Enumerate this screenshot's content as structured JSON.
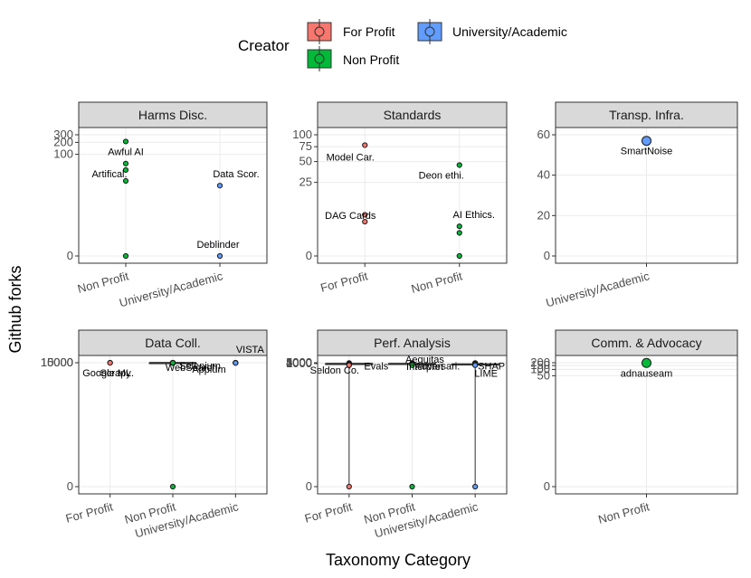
{
  "chart_data": {
    "type": "scatter",
    "xlabel": "Taxonomy Category",
    "ylabel": "Github forks",
    "legend": {
      "title": "Creator",
      "position": "top",
      "entries": [
        {
          "label": "For Profit",
          "color": "#F8766D"
        },
        {
          "label": "University/Academic",
          "color": "#619CFF"
        },
        {
          "label": "Non Profit",
          "color": "#00BA38"
        }
      ]
    },
    "facets": [
      {
        "title": "Harms Disc.",
        "categories": [
          "Non Profit",
          "University/Academic"
        ],
        "yticks": [
          {
            "label": "300",
            "value": 300
          },
          {
            "label": "200",
            "value": 200
          },
          {
            "label": "100",
            "value": 100
          },
          {
            "label": "0",
            "value": 0
          }
        ],
        "points": [
          {
            "category": "Non Profit",
            "value": 210,
            "creator": "Non Profit"
          },
          {
            "category": "Non Profit",
            "value": 55,
            "creator": "Non Profit"
          },
          {
            "category": "Non Profit",
            "value": 35,
            "creator": "Non Profit"
          },
          {
            "category": "Non Profit",
            "value": 15,
            "creator": "Non Profit"
          },
          {
            "category": "Non Profit",
            "value": 0,
            "creator": "Non Profit"
          },
          {
            "category": "University/Academic",
            "value": 10,
            "creator": "University/Academic"
          },
          {
            "category": "University/Academic",
            "value": 0,
            "creator": "University/Academic"
          }
        ],
        "labels": [
          {
            "text": "Awful AI",
            "category": "Non Profit",
            "value": 210
          },
          {
            "text": "Artifical.",
            "category": "Non Profit",
            "value": 55
          },
          {
            "text": "Data Scor.",
            "category": "University/Academic",
            "value": 10
          },
          {
            "text": "Deblinder",
            "category": "University/Academic",
            "value": 0
          }
        ]
      },
      {
        "title": "Standards",
        "categories": [
          "For Profit",
          "Non Profit"
        ],
        "yticks": [
          {
            "label": "100",
            "value": 100
          },
          {
            "label": "75",
            "value": 75
          },
          {
            "label": "50",
            "value": 50
          },
          {
            "label": "25",
            "value": 25
          },
          {
            "label": "0",
            "value": 0
          }
        ],
        "points": [
          {
            "category": "For Profit",
            "value": 78,
            "creator": "For Profit"
          },
          {
            "category": "For Profit",
            "value": 5,
            "creator": "For Profit"
          },
          {
            "category": "For Profit",
            "value": 3,
            "creator": "For Profit"
          },
          {
            "category": "Non Profit",
            "value": 45,
            "creator": "Non Profit"
          },
          {
            "category": "Non Profit",
            "value": 2,
            "creator": "Non Profit"
          },
          {
            "category": "Non Profit",
            "value": 1,
            "creator": "Non Profit"
          },
          {
            "category": "Non Profit",
            "value": 0,
            "creator": "Non Profit"
          }
        ],
        "labels": [
          {
            "text": "Model Car.",
            "category": "For Profit",
            "value": 78
          },
          {
            "text": "Deon ethi.",
            "category": "Non Profit",
            "value": 45
          },
          {
            "text": "DAG Cards",
            "category": "For Profit",
            "value": 3
          },
          {
            "text": "AI Ethics.",
            "category": "Non Profit",
            "value": 2
          }
        ]
      },
      {
        "title": "Transp. Infra.",
        "categories": [
          "University/Academic"
        ],
        "yticks": [
          {
            "label": "60",
            "value": 60
          },
          {
            "label": "40",
            "value": 40
          },
          {
            "label": "20",
            "value": 20
          },
          {
            "label": "0",
            "value": 0
          }
        ],
        "points": [
          {
            "category": "University/Academic",
            "value": 57,
            "creator": "University/Academic"
          }
        ],
        "labels": [
          {
            "text": "SmartNoise",
            "category": "University/Academic",
            "value": 57
          }
        ]
      },
      {
        "title": "Data Coll.",
        "categories": [
          "For Profit",
          "Non Profit",
          "University/Academic"
        ],
        "yticks": [
          {
            "label": "15000",
            "value": 15000
          },
          {
            "label": "10000",
            "value": 10000
          },
          {
            "label": "5000",
            "value": 5000
          },
          {
            "label": "0",
            "value": 0
          }
        ],
        "boxes": [
          {
            "category": "Non Profit",
            "creator": "Non Profit",
            "lower": 50,
            "q1": 80,
            "median": 200,
            "q3": 600,
            "upper": 1000
          }
        ],
        "points": [
          {
            "category": "For Profit",
            "value": 9000,
            "creator": "For Profit"
          },
          {
            "category": "For Profit",
            "value": 450,
            "creator": "For Profit"
          },
          {
            "category": "Non Profit",
            "value": 5000,
            "creator": "Non Profit"
          },
          {
            "category": "Non Profit",
            "value": 4900,
            "creator": "Non Profit"
          },
          {
            "category": "Non Profit",
            "value": 2700,
            "creator": "Non Profit"
          },
          {
            "category": "Non Profit",
            "value": 900,
            "creator": "Non Profit"
          },
          {
            "category": "Non Profit",
            "value": 600,
            "creator": "Non Profit"
          },
          {
            "category": "Non Profit",
            "value": 500,
            "creator": "Non Profit"
          },
          {
            "category": "Non Profit",
            "value": 400,
            "creator": "Non Profit"
          },
          {
            "category": "Non Profit",
            "value": 300,
            "creator": "Non Profit"
          },
          {
            "category": "Non Profit",
            "value": 250,
            "creator": "Non Profit"
          },
          {
            "category": "Non Profit",
            "value": 200,
            "creator": "Non Profit"
          },
          {
            "category": "Non Profit",
            "value": 150,
            "creator": "Non Profit"
          },
          {
            "category": "Non Profit",
            "value": 100,
            "creator": "Non Profit"
          },
          {
            "category": "Non Profit",
            "value": 80,
            "creator": "Non Profit"
          },
          {
            "category": "Non Profit",
            "value": 60,
            "creator": "Non Profit"
          },
          {
            "category": "Non Profit",
            "value": 40,
            "creator": "Non Profit"
          },
          {
            "category": "Non Profit",
            "value": 20,
            "creator": "Non Profit"
          },
          {
            "category": "Non Profit",
            "value": 10,
            "creator": "Non Profit"
          },
          {
            "category": "Non Profit",
            "value": 0,
            "creator": "Non Profit"
          },
          {
            "category": "University/Academic",
            "value": 450,
            "creator": "University/Academic"
          },
          {
            "category": "University/Academic",
            "value": 200,
            "creator": "University/Academic"
          },
          {
            "category": "University/Academic",
            "value": 100,
            "creator": "University/Academic"
          },
          {
            "category": "University/Academic",
            "value": 30,
            "creator": "University/Academic"
          },
          {
            "category": "University/Academic",
            "value": 2,
            "creator": "University/Academic"
          }
        ],
        "labels": [
          {
            "text": "Scrapy",
            "category": "For Profit",
            "value": 9000
          },
          {
            "text": "Selenium",
            "category": "Non Profit",
            "value": 5000
          },
          {
            "text": "Appium",
            "category": "Non Profit",
            "value": 4900
          },
          {
            "text": "VISTA",
            "category": "University/Academic",
            "value": 450
          },
          {
            "text": "Google ML.",
            "category": "For Profit",
            "value": 450
          },
          {
            "text": "WebSearch.",
            "category": "Non Profit",
            "value": 150
          }
        ]
      },
      {
        "title": "Perf. Analysis",
        "categories": [
          "For Profit",
          "Non Profit",
          "University/Academic"
        ],
        "yticks": [
          {
            "label": "5000",
            "value": 5000
          },
          {
            "label": "4000",
            "value": 4000
          },
          {
            "label": "3000",
            "value": 3000
          },
          {
            "label": "2000",
            "value": 2000
          },
          {
            "label": "1000",
            "value": 1000
          },
          {
            "label": "0",
            "value": 0
          }
        ],
        "boxes": [
          {
            "category": "For Profit",
            "creator": "For Profit",
            "lower": 0,
            "q1": 300,
            "median": 570,
            "q3": 700,
            "upper": 900
          },
          {
            "category": "Non Profit",
            "creator": "Non Profit",
            "lower": 500,
            "q1": 560,
            "median": 640,
            "q3": 760,
            "upper": 1000
          },
          {
            "category": "University/Academic",
            "creator": "University/Academic",
            "lower": 0,
            "q1": 180,
            "median": 220,
            "q3": 300,
            "upper": 700
          }
        ],
        "points": [
          {
            "category": "For Profit",
            "value": 2500,
            "creator": "For Profit"
          },
          {
            "category": "For Profit",
            "value": 780,
            "creator": "For Profit"
          },
          {
            "category": "For Profit",
            "value": 720,
            "creator": "For Profit"
          },
          {
            "category": "For Profit",
            "value": 680,
            "creator": "For Profit"
          },
          {
            "category": "For Profit",
            "value": 620,
            "creator": "For Profit"
          },
          {
            "category": "For Profit",
            "value": 590,
            "creator": "For Profit"
          },
          {
            "category": "For Profit",
            "value": 560,
            "creator": "For Profit"
          },
          {
            "category": "For Profit",
            "value": 530,
            "creator": "For Profit"
          },
          {
            "category": "For Profit",
            "value": 500,
            "creator": "For Profit"
          },
          {
            "category": "For Profit",
            "value": 450,
            "creator": "For Profit"
          },
          {
            "category": "For Profit",
            "value": 400,
            "creator": "For Profit"
          },
          {
            "category": "For Profit",
            "value": 350,
            "creator": "For Profit"
          },
          {
            "category": "For Profit",
            "value": 300,
            "creator": "For Profit"
          },
          {
            "category": "For Profit",
            "value": 250,
            "creator": "For Profit"
          },
          {
            "category": "For Profit",
            "value": 200,
            "creator": "For Profit"
          },
          {
            "category": "For Profit",
            "value": 150,
            "creator": "For Profit"
          },
          {
            "category": "For Profit",
            "value": 100,
            "creator": "For Profit"
          },
          {
            "category": "For Profit",
            "value": 60,
            "creator": "For Profit"
          },
          {
            "category": "For Profit",
            "value": 30,
            "creator": "For Profit"
          },
          {
            "category": "For Profit",
            "value": 0,
            "creator": "For Profit"
          },
          {
            "category": "Non Profit",
            "value": 2500,
            "creator": "Non Profit"
          },
          {
            "category": "Non Profit",
            "value": 900,
            "creator": "Non Profit"
          },
          {
            "category": "Non Profit",
            "value": 800,
            "creator": "Non Profit"
          },
          {
            "category": "Non Profit",
            "value": 750,
            "creator": "Non Profit"
          },
          {
            "category": "Non Profit",
            "value": 700,
            "creator": "Non Profit"
          },
          {
            "category": "Non Profit",
            "value": 650,
            "creator": "Non Profit"
          },
          {
            "category": "Non Profit",
            "value": 600,
            "creator": "Non Profit"
          },
          {
            "category": "Non Profit",
            "value": 550,
            "creator": "Non Profit"
          },
          {
            "category": "Non Profit",
            "value": 500,
            "creator": "Non Profit"
          },
          {
            "category": "Non Profit",
            "value": 200,
            "creator": "Non Profit"
          },
          {
            "category": "Non Profit",
            "value": 30,
            "creator": "Non Profit"
          },
          {
            "category": "Non Profit",
            "value": 0,
            "creator": "Non Profit"
          },
          {
            "category": "University/Academic",
            "value": 2500,
            "creator": "University/Academic"
          },
          {
            "category": "University/Academic",
            "value": 2000,
            "creator": "University/Academic"
          },
          {
            "category": "University/Academic",
            "value": 700,
            "creator": "University/Academic"
          },
          {
            "category": "University/Academic",
            "value": 550,
            "creator": "University/Academic"
          },
          {
            "category": "University/Academic",
            "value": 450,
            "creator": "University/Academic"
          },
          {
            "category": "University/Academic",
            "value": 380,
            "creator": "University/Academic"
          },
          {
            "category": "University/Academic",
            "value": 330,
            "creator": "University/Academic"
          },
          {
            "category": "University/Academic",
            "value": 290,
            "creator": "University/Academic"
          },
          {
            "category": "University/Academic",
            "value": 260,
            "creator": "University/Academic"
          },
          {
            "category": "University/Academic",
            "value": 230,
            "creator": "University/Academic"
          },
          {
            "category": "University/Academic",
            "value": 210,
            "creator": "University/Academic"
          },
          {
            "category": "University/Academic",
            "value": 190,
            "creator": "University/Academic"
          },
          {
            "category": "University/Academic",
            "value": 160,
            "creator": "University/Academic"
          },
          {
            "category": "University/Academic",
            "value": 130,
            "creator": "University/Academic"
          },
          {
            "category": "University/Academic",
            "value": 100,
            "creator": "University/Academic"
          },
          {
            "category": "University/Academic",
            "value": 60,
            "creator": "University/Academic"
          },
          {
            "category": "University/Academic",
            "value": 30,
            "creator": "University/Academic"
          },
          {
            "category": "University/Academic",
            "value": 0,
            "creator": "University/Academic"
          }
        ],
        "labels": [
          {
            "text": "Evals",
            "category": "For Profit",
            "value": 2500
          },
          {
            "text": "Adversari.",
            "category": "Non Profit",
            "value": 2500
          },
          {
            "text": "SHAP",
            "category": "University/Academic",
            "value": 2500
          },
          {
            "text": "LIME",
            "category": "University/Academic",
            "value": 2000
          },
          {
            "text": "Seldon Co.",
            "category": "For Profit",
            "value": 780
          },
          {
            "text": "Aequitas",
            "category": "Non Profit",
            "value": 750
          },
          {
            "text": "Interpret",
            "category": "Non Profit",
            "value": 700
          }
        ]
      },
      {
        "title": "Comm. & Advocacy",
        "categories": [
          "Non Profit"
        ],
        "yticks": [
          {
            "label": "200",
            "value": 200
          },
          {
            "label": "150",
            "value": 150
          },
          {
            "label": "100",
            "value": 100
          },
          {
            "label": "50",
            "value": 50
          },
          {
            "label": "0",
            "value": 0
          }
        ],
        "points": [
          {
            "category": "Non Profit",
            "value": 195,
            "creator": "Non Profit"
          }
        ],
        "labels": [
          {
            "text": "adnauseam",
            "category": "Non Profit",
            "value": 195
          }
        ]
      }
    ]
  }
}
